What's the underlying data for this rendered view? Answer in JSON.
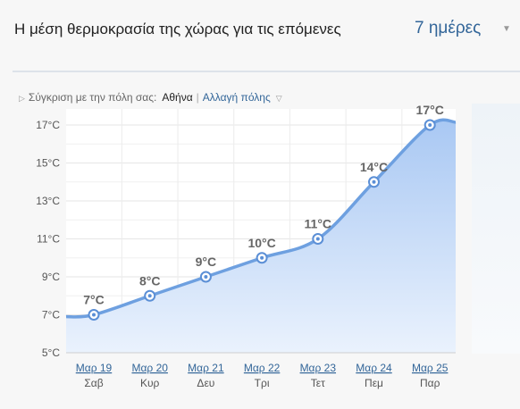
{
  "header": {
    "title": "Η μέση θερμοκρασία της χώρας για τις επόμενες",
    "period": "7 ημέρες"
  },
  "compare": {
    "label": "Σύγκριση με την πόλη σας:",
    "city": "Αθήνα",
    "separator": "|",
    "change_link": "Αλλαγή πόλης"
  },
  "icons": {
    "period_dropdown": "chevron-down-icon",
    "compare_toggle": "triangle-right-icon",
    "city_dropdown": "chevron-down-icon"
  },
  "colors": {
    "line": "#6ea0e0",
    "fill_top": "#a9c8f3",
    "fill_bottom": "#eaf2fd",
    "link": "#336699"
  },
  "chart_data": {
    "type": "area",
    "categories": [
      "Μαρ 19",
      "Μαρ 20",
      "Μαρ 21",
      "Μαρ 22",
      "Μαρ 23",
      "Μαρ 24",
      "Μαρ 25"
    ],
    "day_names": [
      "Σαβ",
      "Κυρ",
      "Δευ",
      "Τρι",
      "Τετ",
      "Πεμ",
      "Παρ"
    ],
    "values": [
      7,
      8,
      9,
      10,
      11,
      14,
      17
    ],
    "value_labels": [
      "7°C",
      "8°C",
      "9°C",
      "10°C",
      "11°C",
      "14°C",
      "17°C"
    ],
    "y_ticks": [
      "5°C",
      "7°C",
      "9°C",
      "11°C",
      "13°C",
      "15°C",
      "17°C"
    ],
    "ylim": [
      5,
      17
    ],
    "grid": true,
    "title": "",
    "xlabel": "",
    "ylabel": ""
  }
}
